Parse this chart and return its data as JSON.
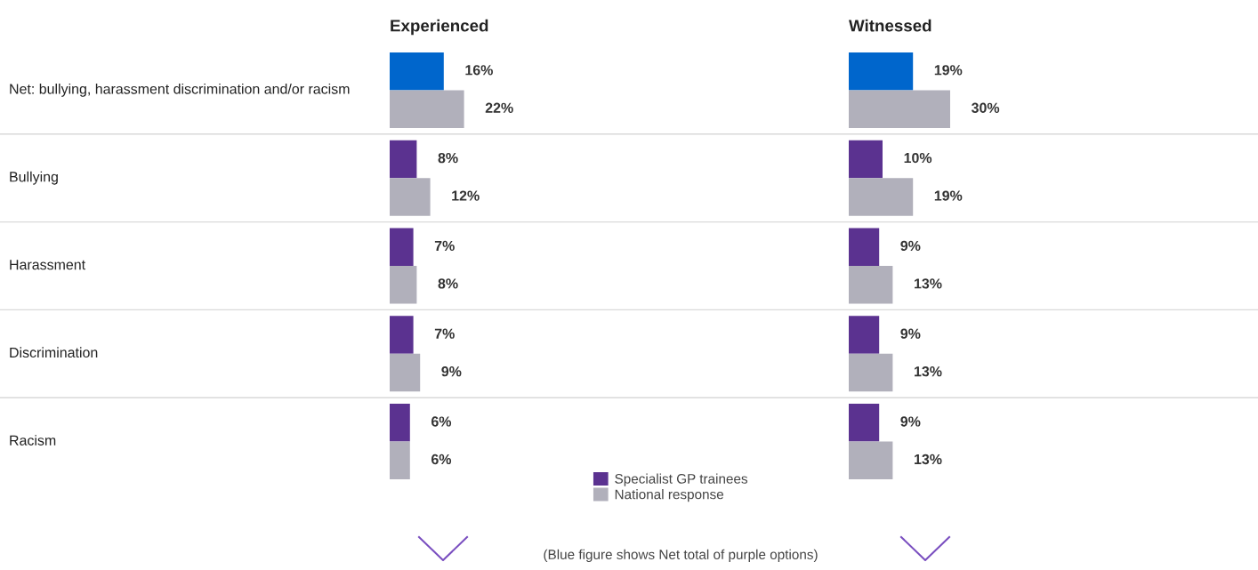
{
  "chart_data": [
    {
      "type": "bar",
      "orientation": "horizontal",
      "title": "Experienced",
      "categories": [
        "Net: bullying, harassment discrimination and/or racism",
        "Bullying",
        "Harassment",
        "Discrimination",
        "Racism"
      ],
      "tick_labels": "y",
      "legend": "bottom right",
      "series": [
        {
          "name": "Specialist GP trainees",
          "color": "#5b3290",
          "colors": [
            "#0066cc",
            "#5b3290",
            "#5b3290",
            "#5b3290",
            "#5b3290"
          ],
          "values": [
            16,
            8,
            7,
            7,
            6
          ],
          "value_labels": [
            "16%",
            "8%",
            "7%",
            "7%",
            "6%"
          ]
        },
        {
          "name": "National response",
          "color": "#b1b0bb",
          "values": [
            22,
            12,
            8,
            9,
            6
          ],
          "value_labels": [
            "22%",
            "12%",
            "8%",
            "9%",
            "6%"
          ]
        }
      ],
      "annotations": [
        "(Blue figure shows Net total of purple options)"
      ]
    },
    {
      "type": "bar",
      "orientation": "horizontal",
      "title": "Witnessed",
      "categories": [
        null,
        null,
        null,
        null,
        null
      ],
      "tick_labels": false,
      "series": [
        {
          "colors": [
            "#0066cc",
            "#5b3290",
            "#5b3290",
            "#5b3290",
            "#5b3290"
          ],
          "values": [
            19,
            10,
            9,
            9,
            9
          ],
          "value_labels": [
            "19%",
            "10%",
            "9%",
            "9%",
            "9%"
          ]
        },
        {
          "color": "#b1b0bb",
          "values": [
            30,
            19,
            13,
            13,
            13
          ],
          "value_labels": [
            "30%",
            "19%",
            "13%",
            "13%",
            "13%"
          ]
        }
      ]
    }
  ]
}
